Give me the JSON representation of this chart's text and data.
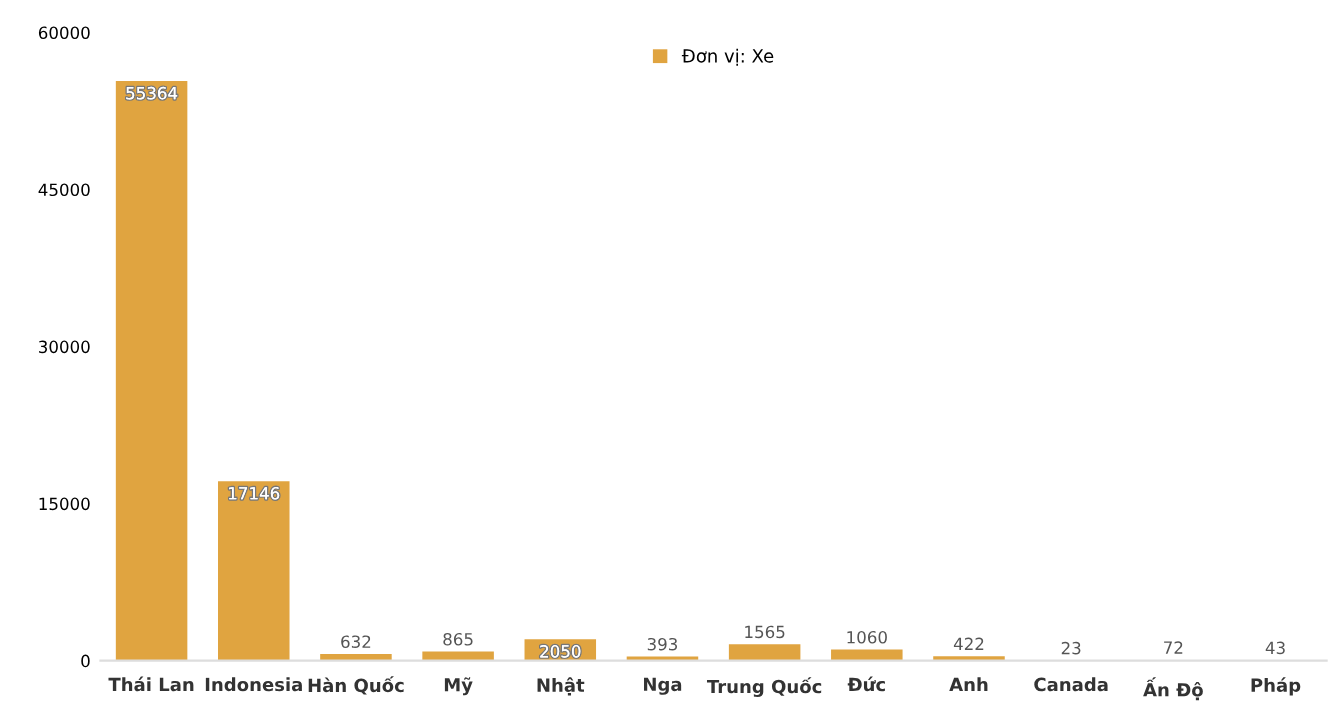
{
  "chart_data": {
    "type": "bar",
    "categories": [
      "Thái Lan",
      "Indonesia",
      "Hàn Quốc",
      "Mỹ",
      "Nhật",
      "Nga",
      "Trung Quốc",
      "Đức",
      "Anh",
      "Canada",
      "Ấn Độ",
      "Pháp"
    ],
    "series": [
      {
        "name": "Đơn vị: Xe",
        "color": "#e0a440",
        "values": [
          55364,
          17146,
          632,
          865,
          2050,
          393,
          1565,
          1060,
          422,
          23,
          72,
          43
        ]
      }
    ],
    "ylim": [
      0,
      60000
    ],
    "yticks": [
      0,
      15000,
      30000,
      45000,
      60000
    ],
    "grid": false,
    "legend": "top",
    "data_labels": true
  }
}
